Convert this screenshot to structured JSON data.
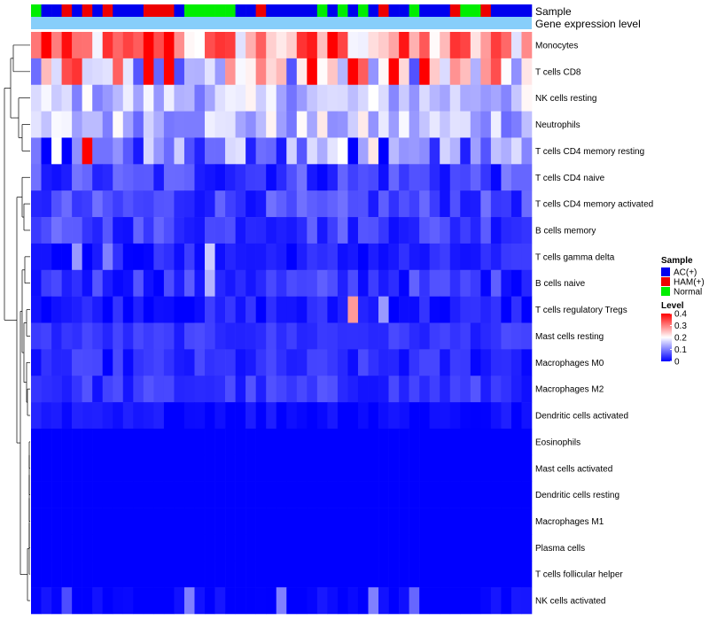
{
  "chart_data": {
    "type": "heatmap",
    "title": "",
    "annotations": {
      "sample_label": "Sample",
      "gene_label": "Gene expression level",
      "gene_color": "#87CEFA",
      "sample_sequence": "NAAHAHAHAAAHHHANNNNNAAHAAAAANANANAHAANAAAHNNHAAAA"
    },
    "groups": [
      {
        "code": "A",
        "name": "AC(+)",
        "color": "#0000EE"
      },
      {
        "code": "H",
        "name": "HAM(+)",
        "color": "#EE0000"
      },
      {
        "code": "N",
        "name": "Normal",
        "color": "#00EE00"
      }
    ],
    "rows": [
      "Monocytes",
      "T cells CD8",
      "NK cells resting",
      "Neutrophils",
      "T cells CD4 memory resting",
      "T cells CD4 naive",
      "T cells CD4 memory activated",
      "B cells memory",
      "T cells gamma delta",
      "B cells naive",
      "T cells regulatory  Tregs",
      "Mast cells resting",
      "Macrophages M0",
      "Macrophages M2",
      "Dendritic cells activated",
      "Eosinophils",
      "Mast cells activated",
      "Dendritic cells resting",
      "Macrophages M1",
      "Plasma cells",
      "T cells follicular helper",
      "NK cells activated"
    ],
    "row_profiles": [
      {
        "base": 0.27,
        "spread": 0.12
      },
      {
        "base": 0.2,
        "spread": 0.14
      },
      {
        "base": 0.15,
        "spread": 0.06
      },
      {
        "base": 0.15,
        "spread": 0.07
      },
      {
        "base": 0.1,
        "spread": 0.08
      },
      {
        "base": 0.05,
        "spread": 0.05
      },
      {
        "base": 0.05,
        "spread": 0.04
      },
      {
        "base": 0.05,
        "spread": 0.04
      },
      {
        "base": 0.02,
        "spread": 0.03
      },
      {
        "base": 0.04,
        "spread": 0.04
      },
      {
        "base": 0.02,
        "spread": 0.03
      },
      {
        "base": 0.04,
        "spread": 0.02
      },
      {
        "base": 0.03,
        "spread": 0.03
      },
      {
        "base": 0.04,
        "spread": 0.03
      },
      {
        "base": 0.01,
        "spread": 0.02
      },
      {
        "base": 0.0,
        "spread": 0.0
      },
      {
        "base": 0.0,
        "spread": 0.0
      },
      {
        "base": 0.0,
        "spread": 0.0
      },
      {
        "base": 0.0,
        "spread": 0.0
      },
      {
        "base": 0.0,
        "spread": 0.0
      },
      {
        "base": 0.0,
        "spread": 0.0
      },
      {
        "base": 0.0,
        "spread": 0.02
      }
    ],
    "overrides": [
      {
        "row": 0,
        "col": 1,
        "v": 0.4
      },
      {
        "row": 0,
        "col": 11,
        "v": 0.4
      },
      {
        "row": 0,
        "col": 13,
        "v": 0.4
      },
      {
        "row": 0,
        "col": 26,
        "v": 0.36
      },
      {
        "row": 0,
        "col": 27,
        "v": 0.38
      },
      {
        "row": 0,
        "col": 29,
        "v": 0.4
      },
      {
        "row": 1,
        "col": 3,
        "v": 0.34
      },
      {
        "row": 1,
        "col": 4,
        "v": 0.36
      },
      {
        "row": 1,
        "col": 11,
        "v": 0.4
      },
      {
        "row": 1,
        "col": 12,
        "v": 0.08
      },
      {
        "row": 1,
        "col": 13,
        "v": 0.4
      },
      {
        "row": 1,
        "col": 27,
        "v": 0.4
      },
      {
        "row": 1,
        "col": 31,
        "v": 0.4
      },
      {
        "row": 1,
        "col": 35,
        "v": 0.4
      },
      {
        "row": 1,
        "col": 38,
        "v": 0.4
      },
      {
        "row": 4,
        "col": 1,
        "v": 0.0
      },
      {
        "row": 4,
        "col": 2,
        "v": 0.2
      },
      {
        "row": 4,
        "col": 3,
        "v": 0.0
      },
      {
        "row": 4,
        "col": 5,
        "v": 0.4
      },
      {
        "row": 4,
        "col": 10,
        "v": 0.02
      },
      {
        "row": 4,
        "col": 24,
        "v": 0.02
      },
      {
        "row": 4,
        "col": 30,
        "v": 0.2
      },
      {
        "row": 4,
        "col": 31,
        "v": 0.0
      },
      {
        "row": 4,
        "col": 33,
        "v": 0.22
      },
      {
        "row": 4,
        "col": 34,
        "v": 0.0
      },
      {
        "row": 8,
        "col": 4,
        "v": 0.12
      },
      {
        "row": 8,
        "col": 7,
        "v": 0.1
      },
      {
        "row": 8,
        "col": 17,
        "v": 0.16
      },
      {
        "row": 9,
        "col": 17,
        "v": 0.14
      },
      {
        "row": 10,
        "col": 31,
        "v": 0.28
      },
      {
        "row": 10,
        "col": 34,
        "v": 0.12
      },
      {
        "row": 21,
        "col": 3,
        "v": 0.06
      },
      {
        "row": 21,
        "col": 15,
        "v": 0.1
      },
      {
        "row": 21,
        "col": 24,
        "v": 0.1
      },
      {
        "row": 21,
        "col": 33,
        "v": 0.1
      },
      {
        "row": 21,
        "col": 37,
        "v": 0.08
      }
    ],
    "colorscale": {
      "low": "#0000FF",
      "mid": "#FFFFFF",
      "high": "#FF0000",
      "min": 0,
      "max": 0.4,
      "mid_value": 0.2
    },
    "legend": {
      "sample_title": "Sample",
      "level_title": "Level",
      "level_ticks": [
        "0.4",
        "0.3",
        "0.2",
        "0.1",
        "0"
      ],
      "level_values": [
        0.4,
        0.3,
        0.2,
        0.1,
        0.0
      ]
    },
    "xlabel": "",
    "ylabel": ""
  }
}
